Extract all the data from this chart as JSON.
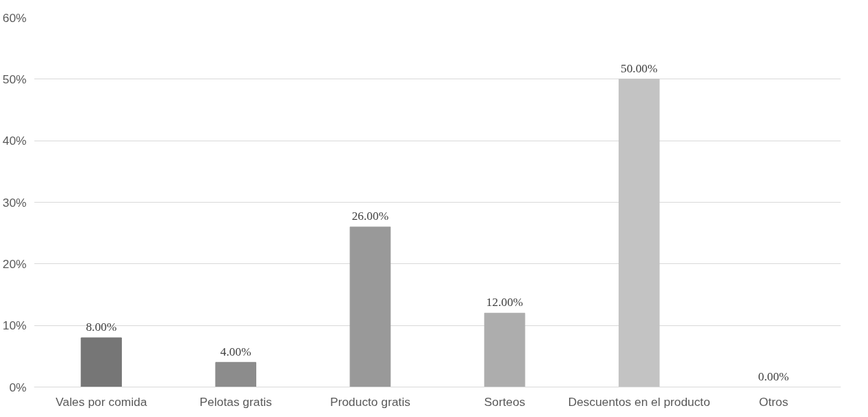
{
  "chart_data": {
    "type": "bar",
    "categories": [
      "Vales por comida",
      "Pelotas gratis",
      "Producto gratis",
      "Sorteos",
      "Descuentos en el producto",
      "Otros"
    ],
    "values": [
      8,
      4,
      26,
      12,
      50,
      0
    ],
    "colors": [
      "#767676",
      "#8c8c8c",
      "#999999",
      "#adadad",
      "#c3c3c3",
      "#d0d0d0"
    ],
    "value_labels": [
      "8.00%",
      "4.00%",
      "26.00%",
      "12.00%",
      "50.00%",
      "0.00%"
    ],
    "ylim": [
      0,
      60
    ],
    "yticks": [
      {
        "value": 0,
        "label": "0%"
      },
      {
        "value": 10,
        "label": "10%"
      },
      {
        "value": 20,
        "label": "20%"
      },
      {
        "value": 30,
        "label": "30%"
      },
      {
        "value": 40,
        "label": "40%"
      },
      {
        "value": 50,
        "label": "50%"
      },
      {
        "value": 60,
        "label": "60%"
      }
    ],
    "grid": "y"
  }
}
